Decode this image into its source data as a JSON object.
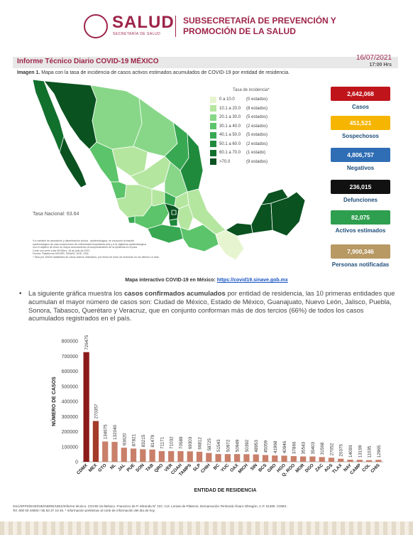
{
  "header": {
    "logo_text": "SALUD",
    "logo_subtext": "SECRETARÍA DE SALUD",
    "subsecretaria": "SUBSECRETARÍA DE PREVENCIÓN Y PROMOCIÓN DE LA SALUD"
  },
  "report": {
    "title": "Informe Técnico Diario COVID-19 MÉXICO",
    "date": "16/07/2021",
    "time": "17:00 Hrs"
  },
  "map": {
    "caption_bold": "Imagen 1.",
    "caption_text": " Mapa con la tasa de incidencia de casos activos estimados acumulados de COVID-19 por entidad de residencia.",
    "legend_title": "Tasa de incidencia*",
    "legend": [
      {
        "range": "0  a  10.0",
        "count": "(0 estados)",
        "color": "#e6f5d0"
      },
      {
        "range": "10.1 a  20.0",
        "count": "(8 estados)",
        "color": "#b5e6a0"
      },
      {
        "range": "20.1 a  30.0",
        "count": "(5 estados)",
        "color": "#88d788"
      },
      {
        "range": "30.1 a  40.0",
        "count": "(2 estados)",
        "color": "#5cc46a"
      },
      {
        "range": "40.1 a  50.0",
        "count": "(5 estados)",
        "color": "#38a852"
      },
      {
        "range": "50.1 a  60.0",
        "count": "(2 estados)",
        "color": "#1f8a3c"
      },
      {
        "range": "60.1 a  70.0",
        "count": "(1 estado)",
        "color": "#12702d"
      },
      {
        "range": ">70.0",
        "count": "(9 estados)",
        "color": "#0a5220"
      }
    ],
    "tasa_nacional": "Tasa Nacional: 63.64",
    "notes": [
      "*La variable de asociación y diseminación clínica - epidemiológica, se incorporó al estudio",
      "epidemiológico de caso sospechoso de enfermedad respiratoria viral y a la vigilancia epidemiológica",
      "con el objetivo de tener un mayor acercamiento al comportamiento de la epidemia en el país.",
      "Corte con corte a las 09:00hrs, 16 de julio de 2021",
      "Fuente: Plataforma SISVER, SINAVE, DGE, SSA",
      "* Tasa por 100mil habitantes de casos activos estimados, por fecha de inicio de síntomas en los últimos 14 días."
    ],
    "link_label": "Mapa interactivo COVID-19 en México: ",
    "link_url": "https://covid19.sinave.gob.mx"
  },
  "stats": [
    {
      "value": "2,642,068",
      "label": "Casos",
      "color": "#c0141b"
    },
    {
      "value": "451,521",
      "label": "Sospechosos",
      "color": "#f5b500"
    },
    {
      "value": "4,806,757",
      "label": "Negativos",
      "color": "#2f6db5"
    },
    {
      "value": "236,015",
      "label": "Defunciones",
      "color": "#111111"
    },
    {
      "value": "82,075",
      "label": "Activos estimados",
      "color": "#2e9e4f"
    },
    {
      "value": "7,900,346",
      "label": "Personas notificadas",
      "color": "#b89963"
    }
  ],
  "paragraph": {
    "intro": "La siguiente gráfica muestra los ",
    "bold": "casos confirmados acumulados",
    "rest": " por entidad de residencia, las 10 primeras entidades que acumulan el mayor número de casos son: Ciudad de México, Estado de México, Guanajuato, Nuevo León, Jalisco, Puebla, Sonora, Tabasco, Querétaro y Veracruz, que en conjunto conforman más de dos tercios (66%) de todos los casos acumulados registrados en el país."
  },
  "chart_data": {
    "type": "bar",
    "categories": [
      "CDMX",
      "MEX",
      "GTO",
      "NL",
      "JAL",
      "PUE",
      "SON",
      "TAB",
      "QRO",
      "VER",
      "COAH",
      "TAMPS",
      "SLP",
      "CHIH",
      "BC",
      "YUC",
      "OAX",
      "MICH",
      "SIN",
      "BCS",
      "GRO",
      "HGO",
      "Q. ROO",
      "MOR",
      "DGO",
      "ZAC",
      "AGS",
      "TLAX",
      "NAY",
      "CAMP",
      "COL",
      "CHIS"
    ],
    "values": [
      726475,
      270357,
      134675,
      132040,
      93620,
      87821,
      83215,
      81479,
      71171,
      71032,
      70589,
      69303,
      66812,
      58725,
      51543,
      50972,
      50949,
      50392,
      48953,
      45059,
      41968,
      40946,
      37866,
      35543,
      35403,
      31568,
      27052,
      20375,
      14093,
      13169,
      11035,
      12965
    ],
    "xlabel": "ENTIDAD DE RESIDENCIA",
    "ylabel": "NÚMERO DE CASOS",
    "ylim": [
      0,
      800000
    ],
    "yticks": [
      "0",
      "100000",
      "200000",
      "300000",
      "400000",
      "500000",
      "600000",
      "700000",
      "800000"
    ],
    "colors": {
      "first": "#8b1a1a",
      "second": "#a33a2a",
      "rest": "#c9806a"
    }
  },
  "footer": {
    "line1": "SSA/SPPS/DGE/DIE/INDRE/UIES/Informe técnico. COVID-19 /México. Francisco de P. Miranda N° 157, Col. Lomas de Plateros, Demarcación Territorial Álvaro Obregón, C.P. 01480. CDMX.",
    "line2": "Tel. 800 00 44800 / 55 53 37 18 45. * Información preliminar al corte de información del día de hoy."
  }
}
